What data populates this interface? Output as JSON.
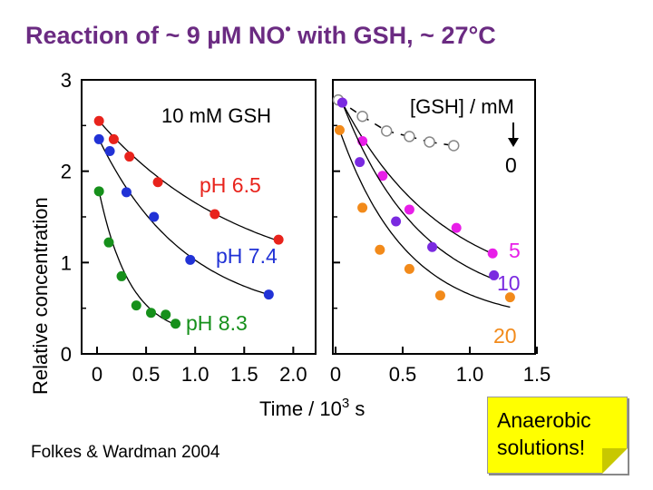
{
  "title": {
    "main": "Reaction of ~ 9 µM NO",
    "sup": "•",
    "rest": " with GSH, ~ 27°C"
  },
  "citation": "Folkes & Wardman 2004",
  "note": {
    "line1": "Anaerobic",
    "line2": "solutions!"
  },
  "colors": {
    "red": "#e8231c",
    "blue": "#2132d6",
    "green": "#16901b",
    "magenta": "#e81ee8",
    "purple": "#7a2ae0",
    "orange": "#f28a1a",
    "grey": "#888888",
    "title": "#6b2b82"
  },
  "chart_data": [
    {
      "type": "scatter",
      "title": "",
      "annotation": "10 mM GSH",
      "ylabel": "Relative concentration",
      "xlabel": "Time / 10³ s",
      "ylim": [
        0,
        3
      ],
      "xlim": [
        0,
        2.2
      ],
      "yticks": [
        "0",
        "1",
        "2",
        "3"
      ],
      "xticks": [
        "0",
        "0.5",
        "1.0",
        "1.5",
        "2.0"
      ],
      "series": [
        {
          "name": "pH 6.5",
          "color": "#e8231c",
          "x": [
            0.02,
            0.17,
            0.33,
            0.62,
            1.2,
            1.85
          ],
          "y": [
            2.55,
            2.35,
            2.16,
            1.88,
            1.53,
            1.25
          ]
        },
        {
          "name": "pH 7.4",
          "color": "#2132d6",
          "x": [
            0.02,
            0.13,
            0.3,
            0.58,
            0.95,
            1.75
          ],
          "y": [
            2.35,
            2.22,
            1.77,
            1.5,
            1.03,
            0.65
          ]
        },
        {
          "name": "pH 8.3",
          "color": "#16901b",
          "x": [
            0.02,
            0.12,
            0.25,
            0.4,
            0.55,
            0.7,
            0.8
          ],
          "y": [
            1.78,
            1.22,
            0.85,
            0.53,
            0.45,
            0.43,
            0.33
          ]
        }
      ]
    },
    {
      "type": "scatter",
      "title": "",
      "annotation": "[GSH] / mM",
      "ylabel": "",
      "xlabel": "Time / 10³ s",
      "ylim": [
        0,
        3
      ],
      "xlim": [
        0,
        1.5
      ],
      "xticks": [
        "0",
        "0.5",
        "1.0",
        "1.5"
      ],
      "series": [
        {
          "name": "0",
          "color": "#888888",
          "style": "dashed-open",
          "x": [
            0.02,
            0.2,
            0.38,
            0.55,
            0.7,
            0.88
          ],
          "y": [
            2.78,
            2.6,
            2.44,
            2.38,
            2.32,
            2.28
          ]
        },
        {
          "name": "5",
          "color": "#e81ee8",
          "x": [
            0.05,
            0.2,
            0.35,
            0.55,
            0.9,
            1.17
          ],
          "y": [
            2.75,
            2.33,
            1.95,
            1.58,
            1.38,
            1.1
          ]
        },
        {
          "name": "10",
          "color": "#7a2ae0",
          "x": [
            0.05,
            0.18,
            0.45,
            0.72,
            1.18
          ],
          "y": [
            2.75,
            2.1,
            1.45,
            1.17,
            0.86
          ]
        },
        {
          "name": "20",
          "color": "#f28a1a",
          "x": [
            0.03,
            0.2,
            0.33,
            0.55,
            0.78,
            1.3
          ],
          "y": [
            2.45,
            1.6,
            1.14,
            0.93,
            0.64,
            0.62
          ]
        }
      ]
    }
  ]
}
